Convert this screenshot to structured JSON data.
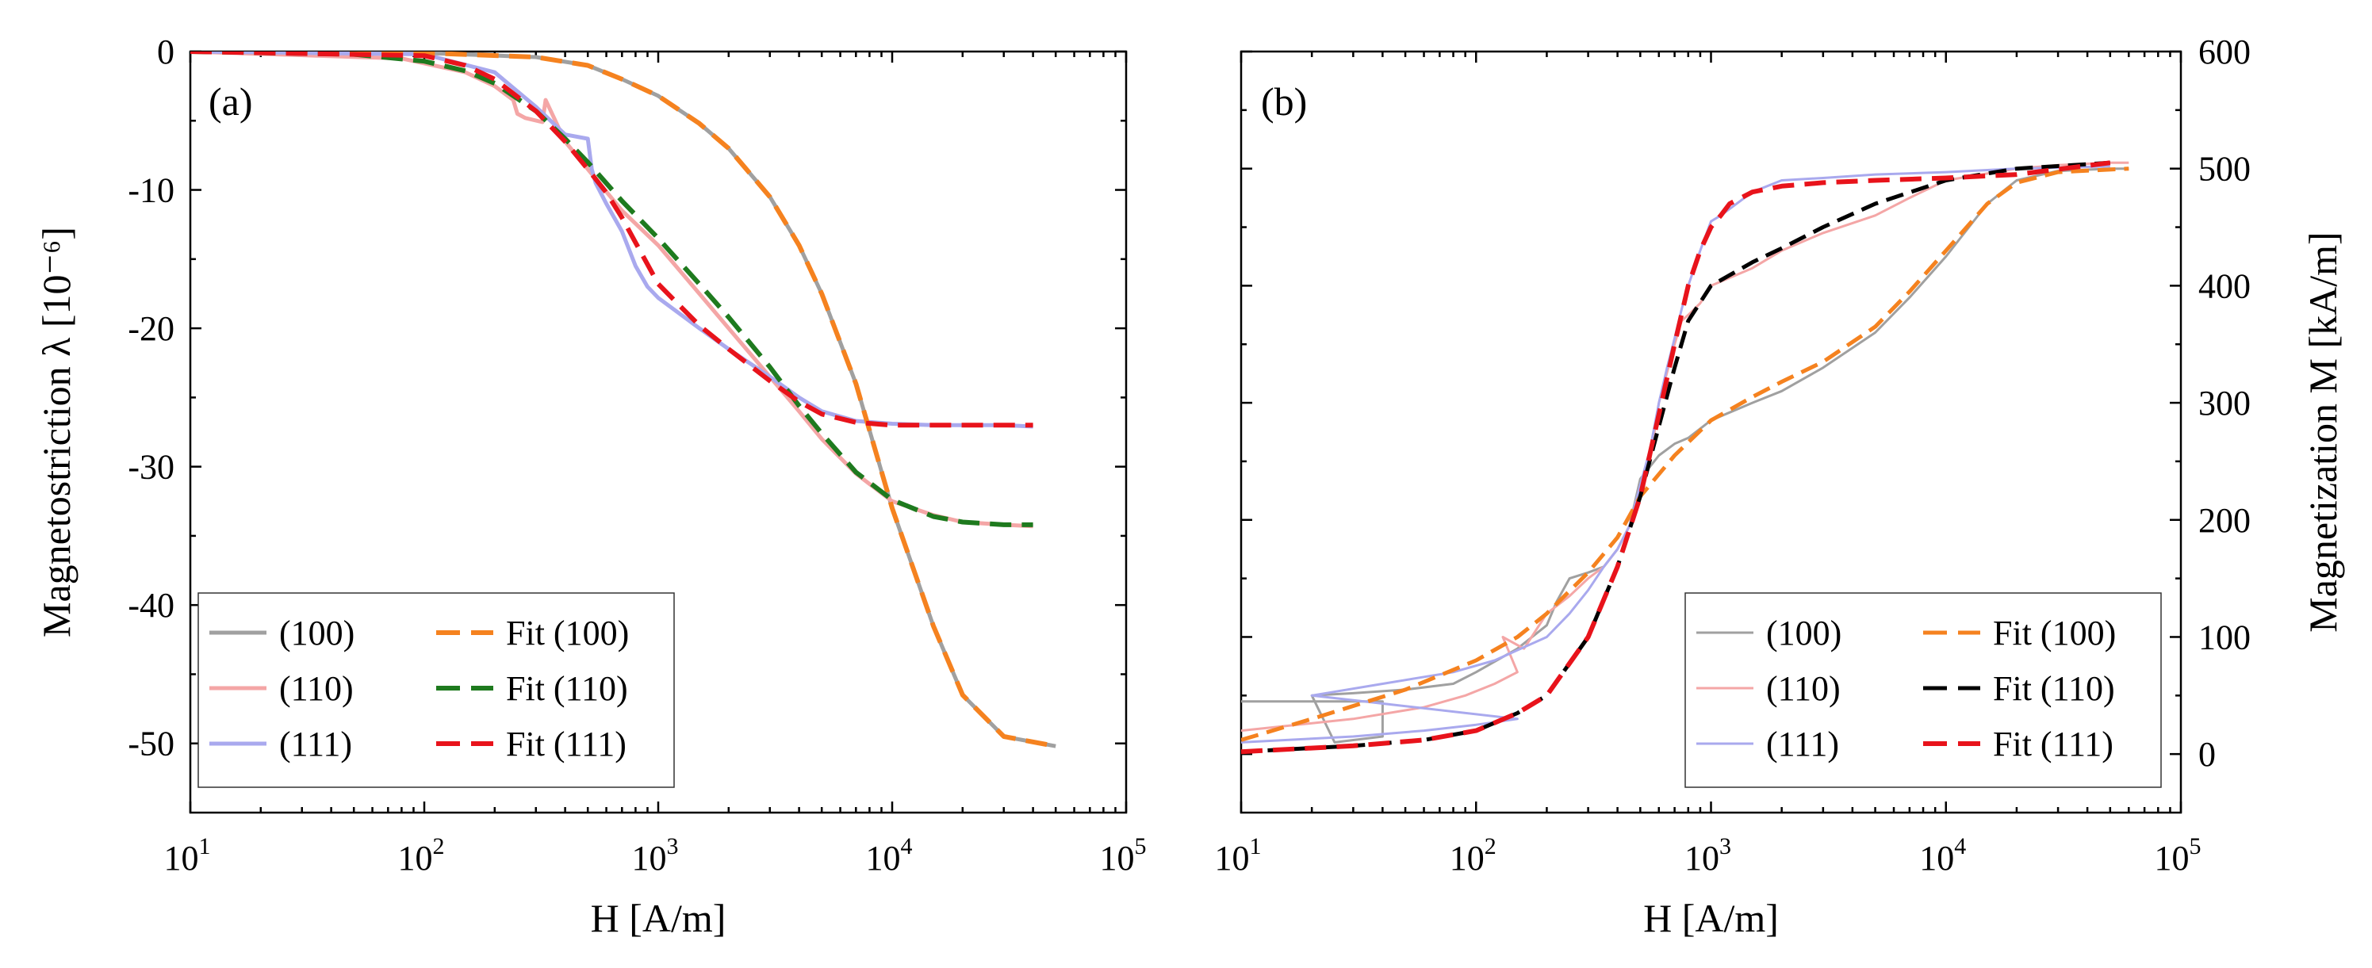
{
  "colors": {
    "gray": "#a0a0a0",
    "pink": "#f4a6a6",
    "lavender": "#a9a9ee",
    "orange": "#f5821f",
    "green": "#1e7a1e",
    "red": "#e8131b",
    "black": "#000000"
  },
  "chart_data": [
    {
      "type": "line",
      "panel_label": "(a)",
      "xlabel": "H [A/m]",
      "ylabel": "Magnetostriction λ [10⁻⁶]",
      "x_scale": "log",
      "xlim": [
        10,
        100000
      ],
      "ylim": [
        -55,
        0
      ],
      "x_ticks": [
        {
          "value": 10,
          "base": "10",
          "exp": "1"
        },
        {
          "value": 100,
          "base": "10",
          "exp": "2"
        },
        {
          "value": 1000,
          "base": "10",
          "exp": "3"
        },
        {
          "value": 10000,
          "base": "10",
          "exp": "4"
        },
        {
          "value": 100000,
          "base": "10",
          "exp": "5"
        }
      ],
      "y_ticks": [
        {
          "value": 0,
          "label": "0"
        },
        {
          "value": -10,
          "label": "-10"
        },
        {
          "value": -20,
          "label": "-20"
        },
        {
          "value": -30,
          "label": "-30"
        },
        {
          "value": -40,
          "label": "-40"
        },
        {
          "value": -50,
          "label": "-50"
        }
      ],
      "legend_position": "bottom-left",
      "series": [
        {
          "name": "(100)",
          "color": "gray",
          "style": "solid",
          "width": 5,
          "x": [
            10,
            100,
            300,
            500,
            700,
            1000,
            1500,
            2000,
            3000,
            4000,
            5000,
            7000,
            10000,
            15000,
            20000,
            30000,
            50000
          ],
          "y": [
            0,
            -0.1,
            -0.4,
            -1.0,
            -2.0,
            -3.2,
            -5.2,
            -7.0,
            -10.5,
            -14.0,
            -17.5,
            -24.0,
            -33.0,
            -41.5,
            -46.5,
            -49.5,
            -50.2
          ]
        },
        {
          "name": "(110)",
          "color": "pink",
          "style": "solid",
          "width": 5,
          "x": [
            10,
            80,
            150,
            200,
            240,
            250,
            270,
            320,
            330,
            400,
            500,
            700,
            1000,
            1500,
            2000,
            3000,
            4000,
            5000,
            7000,
            10000,
            15000,
            20000,
            30000,
            40000
          ],
          "y": [
            0,
            -0.5,
            -1.5,
            -2.5,
            -3.5,
            -4.5,
            -4.8,
            -5.1,
            -3.5,
            -6.5,
            -8.5,
            -11.5,
            -14.0,
            -17.5,
            -20.0,
            -23.5,
            -26.0,
            -28.0,
            -30.5,
            -32.5,
            -33.5,
            -34.0,
            -34.2,
            -34.3
          ]
        },
        {
          "name": "(111)",
          "color": "lavender",
          "style": "solid",
          "width": 5,
          "x": [
            10,
            100,
            200,
            300,
            400,
            500,
            520,
            540,
            600,
            700,
            800,
            900,
            1000,
            1500,
            2000,
            3000,
            4000,
            5000,
            7000,
            10000,
            15000,
            20000,
            30000,
            40000
          ],
          "y": [
            0,
            -0.2,
            -1.5,
            -4.0,
            -6.0,
            -6.3,
            -8.5,
            -9.5,
            -11.0,
            -13.0,
            -15.5,
            -17.0,
            -17.8,
            -20.0,
            -21.5,
            -23.5,
            -25.0,
            -26.0,
            -26.7,
            -26.9,
            -27.0,
            -27.0,
            -27.0,
            -27.1
          ]
        },
        {
          "name": "Fit (100)",
          "color": "orange",
          "style": "dashed",
          "width": 6,
          "x": [
            10,
            100,
            300,
            500,
            700,
            1000,
            1500,
            2000,
            3000,
            4000,
            5000,
            7000,
            10000,
            15000,
            20000,
            30000,
            50000
          ],
          "y": [
            0,
            -0.1,
            -0.4,
            -1.0,
            -2.0,
            -3.2,
            -5.2,
            -7.0,
            -10.5,
            -14.0,
            -17.5,
            -24.0,
            -33.0,
            -41.5,
            -46.5,
            -49.5,
            -50.2
          ]
        },
        {
          "name": "Fit (110)",
          "color": "green",
          "style": "dashed",
          "width": 6,
          "x": [
            10,
            50,
            100,
            150,
            200,
            300,
            400,
            500,
            700,
            1000,
            1500,
            2000,
            3000,
            4000,
            5000,
            7000,
            10000,
            15000,
            20000,
            30000,
            40000
          ],
          "y": [
            0,
            -0.2,
            -0.7,
            -1.4,
            -2.3,
            -4.3,
            -6.3,
            -8.0,
            -10.8,
            -13.5,
            -16.8,
            -19.2,
            -22.8,
            -25.6,
            -27.6,
            -30.4,
            -32.4,
            -33.6,
            -34.0,
            -34.2,
            -34.2
          ]
        },
        {
          "name": "Fit (111)",
          "color": "red",
          "style": "dashed",
          "width": 6,
          "x": [
            10,
            100,
            150,
            200,
            300,
            400,
            500,
            600,
            700,
            800,
            1000,
            1500,
            2000,
            3000,
            4000,
            5000,
            7000,
            10000,
            15000,
            20000,
            30000,
            40000
          ],
          "y": [
            0,
            -0.3,
            -1.0,
            -2.0,
            -4.3,
            -6.5,
            -8.5,
            -10.2,
            -12.0,
            -13.8,
            -16.8,
            -19.8,
            -21.5,
            -23.8,
            -25.3,
            -26.2,
            -26.8,
            -27.0,
            -27.0,
            -27.0,
            -27.0,
            -27.0
          ]
        }
      ]
    },
    {
      "type": "line",
      "panel_label": "(b)",
      "xlabel": "H [A/m]",
      "ylabel": "Magnetization M [kA/m]",
      "x_scale": "log",
      "xlim": [
        10,
        100000
      ],
      "ylim": [
        -50,
        600
      ],
      "x_ticks": [
        {
          "value": 10,
          "base": "10",
          "exp": "1"
        },
        {
          "value": 100,
          "base": "10",
          "exp": "2"
        },
        {
          "value": 1000,
          "base": "10",
          "exp": "3"
        },
        {
          "value": 10000,
          "base": "10",
          "exp": "4"
        },
        {
          "value": 100000,
          "base": "10",
          "exp": "5"
        }
      ],
      "y_ticks": [
        {
          "value": 0,
          "label": "0"
        },
        {
          "value": 100,
          "label": "100"
        },
        {
          "value": 200,
          "label": "200"
        },
        {
          "value": 300,
          "label": "300"
        },
        {
          "value": 400,
          "label": "400"
        },
        {
          "value": 500,
          "label": "500"
        },
        {
          "value": 600,
          "label": "600"
        }
      ],
      "legend_position": "bottom-right",
      "series": [
        {
          "name": "(100)",
          "color": "gray",
          "style": "solid",
          "width": 3,
          "x": [
            10,
            20,
            40,
            40,
            25,
            20,
            30,
            50,
            80,
            100,
            150,
            200,
            220,
            250,
            300,
            350,
            400,
            450,
            500,
            600,
            700,
            800,
            1000,
            1500,
            2000,
            3000,
            5000,
            7000,
            10000,
            15000,
            20000,
            30000,
            50000,
            60000
          ],
          "y": [
            45,
            45,
            45,
            15,
            10,
            50,
            52,
            55,
            60,
            70,
            90,
            110,
            130,
            150,
            155,
            160,
            175,
            195,
            235,
            255,
            265,
            270,
            285,
            300,
            310,
            330,
            360,
            390,
            425,
            470,
            490,
            498,
            500,
            500
          ]
        },
        {
          "name": "(110)",
          "color": "pink",
          "style": "solid",
          "width": 3,
          "x": [
            10,
            30,
            60,
            90,
            120,
            150,
            130,
            160,
            200,
            250,
            300,
            350,
            400,
            450,
            500,
            550,
            600,
            700,
            750,
            800,
            900,
            1000,
            1500,
            2000,
            3000,
            5000,
            7000,
            10000,
            20000,
            30000,
            50000,
            60000
          ],
          "y": [
            20,
            30,
            40,
            50,
            60,
            70,
            100,
            90,
            120,
            135,
            150,
            160,
            175,
            195,
            220,
            250,
            300,
            350,
            370,
            375,
            385,
            400,
            415,
            430,
            445,
            460,
            475,
            490,
            500,
            503,
            505,
            505
          ]
        },
        {
          "name": "(111)",
          "color": "lavender",
          "style": "solid",
          "width": 3,
          "x": [
            10,
            30,
            60,
            100,
            150,
            20,
            40,
            80,
            120,
            200,
            250,
            300,
            350,
            400,
            450,
            500,
            550,
            600,
            650,
            700,
            750,
            800,
            900,
            1000,
            1100,
            1500,
            2000,
            3000,
            5000,
            10000,
            20000,
            50000
          ],
          "y": [
            10,
            15,
            20,
            25,
            30,
            50,
            60,
            70,
            80,
            100,
            120,
            140,
            160,
            175,
            195,
            230,
            260,
            300,
            330,
            355,
            380,
            400,
            430,
            455,
            460,
            480,
            490,
            492,
            495,
            497,
            500,
            502
          ]
        },
        {
          "name": "Fit (100)",
          "color": "orange",
          "style": "dashed",
          "width": 5,
          "x": [
            10,
            20,
            50,
            100,
            150,
            200,
            300,
            400,
            500,
            700,
            1000,
            1500,
            2000,
            3000,
            5000,
            7000,
            10000,
            15000,
            20000,
            30000,
            60000
          ],
          "y": [
            12,
            30,
            55,
            80,
            100,
            120,
            155,
            185,
            220,
            255,
            285,
            305,
            318,
            335,
            365,
            395,
            430,
            470,
            488,
            497,
            500
          ]
        },
        {
          "name": "Fit (110)",
          "color": "black",
          "style": "dashed",
          "width": 5,
          "x": [
            10,
            30,
            60,
            100,
            150,
            200,
            300,
            400,
            500,
            600,
            700,
            800,
            1000,
            1500,
            2000,
            3000,
            5000,
            10000,
            20000,
            50000
          ],
          "y": [
            2,
            7,
            12,
            20,
            35,
            50,
            100,
            160,
            220,
            280,
            330,
            370,
            400,
            420,
            432,
            450,
            470,
            490,
            500,
            505
          ]
        },
        {
          "name": "Fit (111)",
          "color": "red",
          "style": "dashed",
          "width": 6,
          "x": [
            10,
            30,
            60,
            100,
            150,
            200,
            300,
            400,
            500,
            600,
            700,
            800,
            900,
            1000,
            1100,
            1200,
            1500,
            2000,
            3000,
            5000,
            10000,
            20000,
            50000
          ],
          "y": [
            2,
            7,
            12,
            20,
            35,
            50,
            100,
            160,
            220,
            290,
            350,
            400,
            430,
            450,
            460,
            470,
            480,
            485,
            488,
            490,
            492,
            495,
            505
          ]
        }
      ]
    }
  ]
}
